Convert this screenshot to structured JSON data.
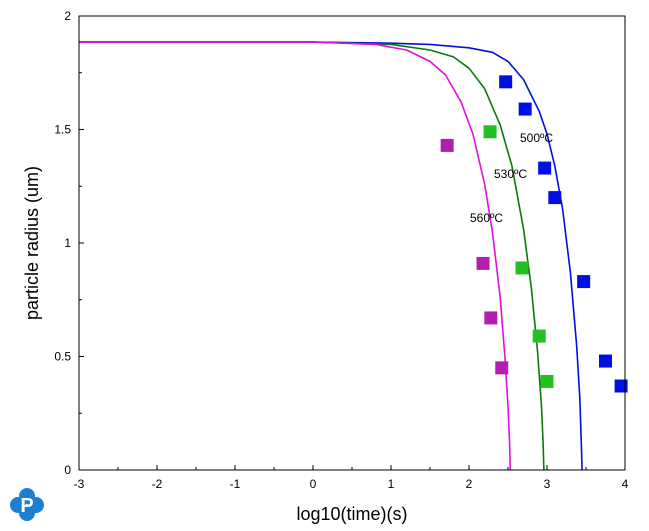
{
  "chart_data": {
    "type": "scatter",
    "xlabel": "log10(time)(s)",
    "ylabel": "particle radius (um)",
    "xlim": [
      -3,
      4
    ],
    "ylim": [
      0,
      2
    ],
    "xticks": [
      "-3",
      "-2",
      "-1",
      "0",
      "1",
      "2",
      "3",
      "4"
    ],
    "yticks": [
      "0",
      "0.5",
      "1",
      "1.5",
      "2"
    ],
    "grid": false,
    "legend": "none",
    "annotations": [
      {
        "text": "500ºC",
        "series": "500"
      },
      {
        "text": "530ºC",
        "series": "530"
      },
      {
        "text": "560ºC",
        "series": "560"
      }
    ],
    "series": [
      {
        "key": "500",
        "color": "#0010e0",
        "curve": {
          "x": [
            -3,
            0,
            1,
            1.5,
            2,
            2.3,
            2.5,
            2.7,
            2.9,
            3.0,
            3.1,
            3.2,
            3.3,
            3.38,
            3.42,
            3.44,
            3.45
          ],
          "y": [
            1.885,
            1.885,
            1.88,
            1.875,
            1.86,
            1.84,
            1.8,
            1.72,
            1.58,
            1.48,
            1.34,
            1.15,
            0.87,
            0.55,
            0.32,
            0.12,
            0
          ]
        },
        "points": {
          "x": [
            2.47,
            2.72,
            2.97,
            3.1,
            3.47,
            3.75,
            3.95
          ],
          "y": [
            1.71,
            1.59,
            1.33,
            1.2,
            0.83,
            0.48,
            0.37
          ]
        }
      },
      {
        "key": "530",
        "color": "#0a7a0a",
        "point_color": "#22c022",
        "curve": {
          "x": [
            -3,
            0,
            1,
            1.5,
            1.8,
            2.0,
            2.2,
            2.4,
            2.55,
            2.7,
            2.8,
            2.88,
            2.93,
            2.95,
            2.96
          ],
          "y": [
            1.885,
            1.885,
            1.875,
            1.85,
            1.82,
            1.77,
            1.68,
            1.52,
            1.34,
            1.06,
            0.8,
            0.52,
            0.28,
            0.12,
            0
          ]
        },
        "points": {
          "x": [
            2.27,
            2.68,
            2.9,
            3.0
          ],
          "y": [
            1.49,
            0.89,
            0.59,
            0.39
          ]
        }
      },
      {
        "key": "560",
        "color": "#e010e0",
        "point_color": "#b020b0",
        "curve": {
          "x": [
            -3,
            0,
            0.8,
            1.2,
            1.5,
            1.7,
            1.9,
            2.05,
            2.2,
            2.3,
            2.4,
            2.46,
            2.5,
            2.52,
            2.53
          ],
          "y": [
            1.885,
            1.885,
            1.875,
            1.85,
            1.8,
            1.74,
            1.62,
            1.48,
            1.26,
            1.05,
            0.76,
            0.5,
            0.28,
            0.12,
            0
          ]
        },
        "points": {
          "x": [
            1.72,
            2.18,
            2.28,
            2.42
          ],
          "y": [
            1.43,
            0.91,
            0.67,
            0.45
          ]
        }
      }
    ]
  },
  "logo": {
    "letter": "P",
    "color": "#1a7fd1"
  }
}
